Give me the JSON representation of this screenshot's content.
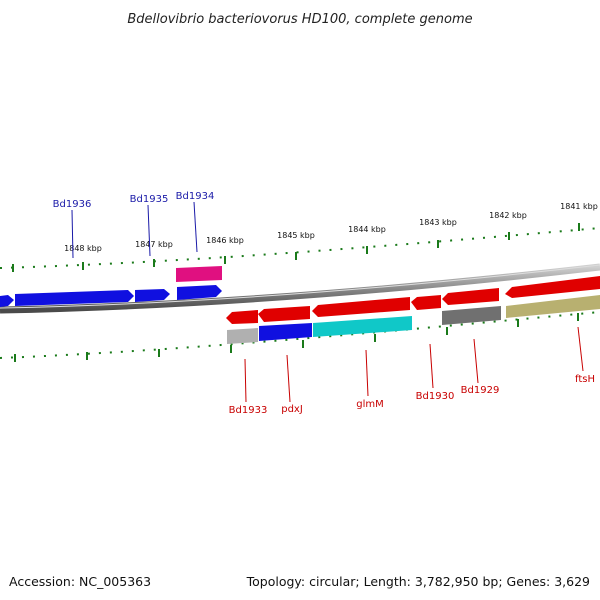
{
  "title": "Bdellovibrio bacteriovorus HD100, complete genome",
  "footer": {
    "accession": "Accession: NC_005363",
    "summary": "Topology: circular; Length: 3,782,950 bp; Genes: 3,629"
  },
  "scale": {
    "ticks": [
      "1848 kbp",
      "1847 kbp",
      "1846 kbp",
      "1845 kbp",
      "1844 kbp",
      "1843 kbp",
      "1842 kbp",
      "1841 kbp"
    ]
  },
  "genes": {
    "outer": [
      "Bd1936",
      "Bd1935",
      "Bd1934"
    ],
    "inner": [
      "Bd1933",
      "pdxJ",
      "glmM",
      "Bd1930",
      "Bd1929",
      "ftsH"
    ]
  },
  "colors": {
    "blue": "#1010e0",
    "red": "#e00000",
    "pink": "#e01080",
    "cyan": "#10c8c8",
    "gray": "#707070",
    "olive": "#b8b070",
    "tick": "#1a7a1a"
  }
}
